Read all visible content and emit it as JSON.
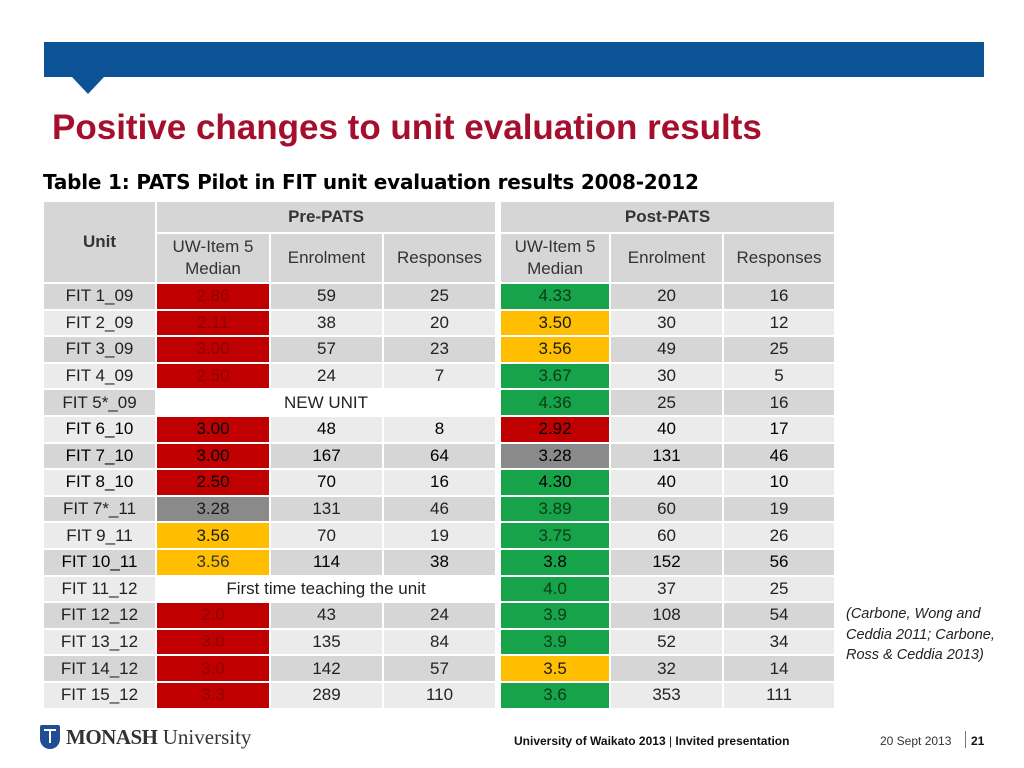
{
  "slide": {
    "title": "Positive changes to unit evaluation results",
    "caption": "Table 1: PATS Pilot in FIT unit evaluation results 2008-2012"
  },
  "colors": {
    "accent_blue": "#0b5394",
    "title_red": "#a50f2d",
    "cell_red": "#c00000",
    "cell_green": "#16a34a",
    "cell_amber": "#ffbf00",
    "cell_grey": "#8a8a8a"
  },
  "table": {
    "headers": {
      "unit": "Unit",
      "pre": "Pre-PATS",
      "post": "Post-PATS",
      "median": "UW-Item 5 Median",
      "enrolment": "Enrolment",
      "responses": "Responses"
    },
    "rows": [
      {
        "unit": "FIT 1_09",
        "pre_median": "2.86",
        "pre_enrol": "59",
        "pre_resp": "25",
        "post_median": "4.33",
        "post_enrol": "20",
        "post_resp": "16"
      },
      {
        "unit": "FIT 2_09",
        "pre_median": "2.11",
        "pre_enrol": "38",
        "pre_resp": "20",
        "post_median": "3.50",
        "post_enrol": "30",
        "post_resp": "12"
      },
      {
        "unit": "FIT 3_09",
        "pre_median": "3.00",
        "pre_enrol": "57",
        "pre_resp": "23",
        "post_median": "3.56",
        "post_enrol": "49",
        "post_resp": "25"
      },
      {
        "unit": "FIT 4_09",
        "pre_median": "2.50",
        "pre_enrol": "24",
        "pre_resp": "7",
        "post_median": "3.67",
        "post_enrol": "30",
        "post_resp": "5"
      },
      {
        "unit": "FIT 5*_09",
        "pre_note": "NEW UNIT",
        "post_median": "4.36",
        "post_enrol": "25",
        "post_resp": "16"
      },
      {
        "unit": "FIT 6_10",
        "pre_median": "3.00",
        "pre_enrol": "48",
        "pre_resp": "8",
        "post_median": "2.92",
        "post_enrol": "40",
        "post_resp": "17"
      },
      {
        "unit": "FIT 7_10",
        "pre_median": "3.00",
        "pre_enrol": "167",
        "pre_resp": "64",
        "post_median": "3.28",
        "post_enrol": "131",
        "post_resp": "46"
      },
      {
        "unit": "FIT 8_10",
        "pre_median": "2.50",
        "pre_enrol": "70",
        "pre_resp": "16",
        "post_median": "4.30",
        "post_enrol": "40",
        "post_resp": "10"
      },
      {
        "unit": "FIT 7*_11",
        "pre_median": "3.28",
        "pre_enrol": "131",
        "pre_resp": "46",
        "post_median": "3.89",
        "post_enrol": "60",
        "post_resp": "19"
      },
      {
        "unit": "FIT 9_11",
        "pre_median": "3.56",
        "pre_enrol": "70",
        "pre_resp": "19",
        "post_median": "3.75",
        "post_enrol": "60",
        "post_resp": "26"
      },
      {
        "unit": "FIT 10_11",
        "pre_median": "3.56",
        "pre_enrol": "114",
        "pre_resp": "38",
        "post_median": "3.8",
        "post_enrol": "152",
        "post_resp": "56"
      },
      {
        "unit": "FIT 11_12",
        "pre_note": "First time teaching the unit",
        "post_median": "4.0",
        "post_enrol": "37",
        "post_resp": "25"
      },
      {
        "unit": "FIT 12_12",
        "pre_median": "2.0",
        "pre_enrol": "43",
        "pre_resp": "24",
        "post_median": "3.9",
        "post_enrol": "108",
        "post_resp": "54"
      },
      {
        "unit": "FIT 13_12",
        "pre_median": "3.0",
        "pre_enrol": "135",
        "pre_resp": "84",
        "post_median": "3.9",
        "post_enrol": "52",
        "post_resp": "34"
      },
      {
        "unit": "FIT 14_12",
        "pre_median": "3.0",
        "pre_enrol": "142",
        "pre_resp": "57",
        "post_median": "3.5",
        "post_enrol": "32",
        "post_resp": "14"
      },
      {
        "unit": "FIT 15_12",
        "pre_median": "3.3",
        "pre_enrol": "289",
        "pre_resp": "110",
        "post_median": "3.6",
        "post_enrol": "353",
        "post_resp": "111"
      }
    ]
  },
  "citation": "(Carbone, Wong and Ceddia 2011; Carbone, Ross & Ceddia 2013)",
  "footer": {
    "logo_bold": "MONASH",
    "logo_rest": " University",
    "event": "University of Waikato 2013",
    "event_sep": " | ",
    "event_detail": "Invited presentation",
    "date": "20 Sept 2013",
    "page": "21"
  }
}
